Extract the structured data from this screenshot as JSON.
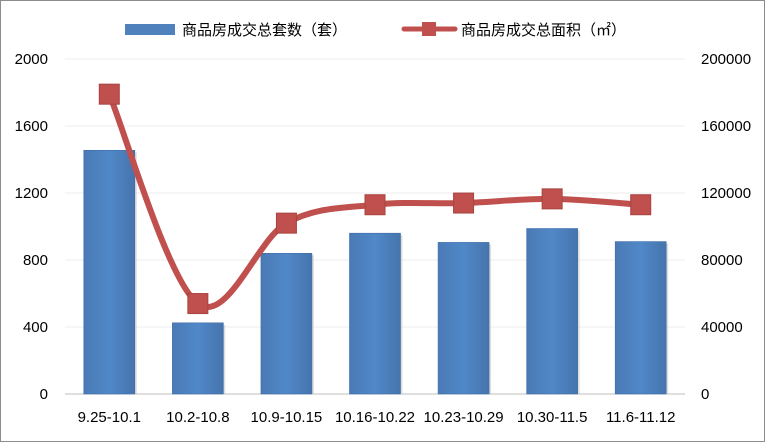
{
  "chart_data": {
    "type": "bar",
    "categories": [
      "9.25-10.1",
      "10.2-10.8",
      "10.9-10.15",
      "10.16-10.22",
      "10.23-10.29",
      "10.30-11.5",
      "11.6-11.12"
    ],
    "series": [
      {
        "name": "商品房成交总套数（套）",
        "type": "bar",
        "axis": "left",
        "color": "#4f81bd",
        "values": [
          1455,
          425,
          840,
          960,
          905,
          988,
          910
        ]
      },
      {
        "name": "商品房成交总面积（㎡）",
        "type": "line",
        "axis": "right",
        "color": "#c0504d",
        "values": [
          179000,
          54000,
          102000,
          113000,
          114000,
          116500,
          113000
        ]
      }
    ],
    "y_left": {
      "min": 0,
      "max": 2000,
      "ticks": [
        "0",
        "400",
        "800",
        "1200",
        "1600",
        "2000"
      ]
    },
    "y_right": {
      "min": 0,
      "max": 200000,
      "ticks": [
        "0",
        "40000",
        "80000",
        "120000",
        "160000",
        "200000"
      ]
    },
    "grid": true,
    "legend": "top"
  }
}
